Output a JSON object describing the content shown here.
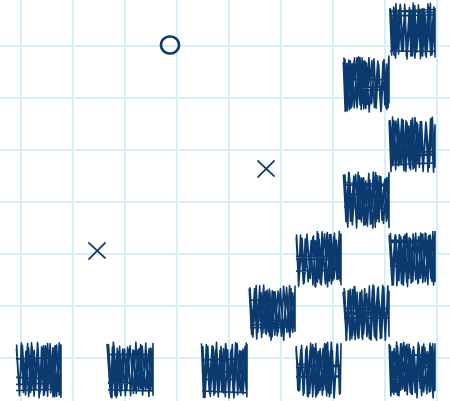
{
  "board": {
    "ink_color": "#0a3a6e",
    "grid_color": "#d6f0f7",
    "background": "#ffffff"
  },
  "tiles": [
    {
      "type": "scribble-block",
      "col": 7,
      "row": 0
    },
    {
      "type": "scribble-block",
      "col": 6,
      "row": 1
    },
    {
      "type": "scribble-block",
      "col": 7,
      "row": 2
    },
    {
      "type": "scribble-block",
      "col": 6,
      "row": 3
    },
    {
      "type": "scribble-block",
      "col": 5,
      "row": 4
    },
    {
      "type": "scribble-block",
      "col": 7,
      "row": 4
    },
    {
      "type": "scribble-block",
      "col": 4,
      "row": 5
    },
    {
      "type": "scribble-block",
      "col": 6,
      "row": 5
    },
    {
      "type": "scribble-block",
      "col": 0,
      "row": 6
    },
    {
      "type": "scribble-block",
      "col": 2,
      "row": 6
    },
    {
      "type": "scribble-block",
      "col": 4,
      "row": 6
    },
    {
      "type": "scribble-block",
      "col": 5,
      "row": 6
    },
    {
      "type": "scribble-block",
      "col": 7,
      "row": 6
    }
  ],
  "markers": [
    {
      "type": "o",
      "icon": "circle-marker-icon",
      "col": 2,
      "row": 0
    },
    {
      "type": "x",
      "icon": "x-marker-icon",
      "col": 4,
      "row": 2
    },
    {
      "type": "x",
      "icon": "x-marker-icon",
      "col": 1,
      "row": 4
    }
  ]
}
